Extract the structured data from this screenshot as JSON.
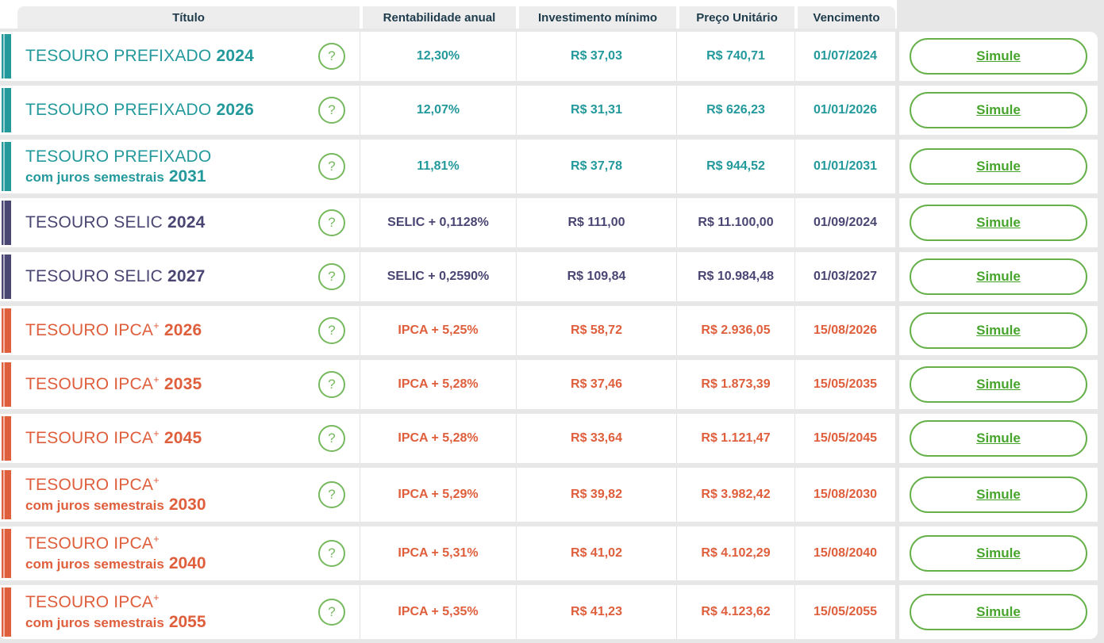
{
  "table": {
    "columns": [
      "Título",
      "Rentabilidade anual",
      "Investimento mínimo",
      "Preço Unitário",
      "Vencimento"
    ],
    "help_icon_glyph": "?",
    "simulate_label": "Simule",
    "rows": [
      {
        "theme": "teal",
        "line1": "TESOURO PREFIXADO",
        "sup": "",
        "year1": "2024",
        "line2": "",
        "year2": "",
        "rate": "12,30%",
        "min": "R$ 37,03",
        "price": "R$ 740,71",
        "due": "01/07/2024",
        "simulate": "Simule"
      },
      {
        "theme": "teal",
        "line1": "TESOURO PREFIXADO",
        "sup": "",
        "year1": "2026",
        "line2": "",
        "year2": "",
        "rate": "12,07%",
        "min": "R$ 31,31",
        "price": "R$ 626,23",
        "due": "01/01/2026",
        "simulate": "Simule"
      },
      {
        "theme": "teal",
        "line1": "TESOURO PREFIXADO",
        "sup": "",
        "year1": "",
        "line2": "com juros semestrais",
        "year2": "2031",
        "rate": "11,81%",
        "min": "R$ 37,78",
        "price": "R$ 944,52",
        "due": "01/01/2031",
        "simulate": "Simule"
      },
      {
        "theme": "purple",
        "line1": "TESOURO SELIC",
        "sup": "",
        "year1": "2024",
        "line2": "",
        "year2": "",
        "rate": "SELIC + 0,1128%",
        "min": "R$ 111,00",
        "price": "R$ 11.100,00",
        "due": "01/09/2024",
        "simulate": "Simule"
      },
      {
        "theme": "purple",
        "line1": "TESOURO SELIC",
        "sup": "",
        "year1": "2027",
        "line2": "",
        "year2": "",
        "rate": "SELIC + 0,2590%",
        "min": "R$ 109,84",
        "price": "R$ 10.984,48",
        "due": "01/03/2027",
        "simulate": "Simule"
      },
      {
        "theme": "orange",
        "line1": "TESOURO IPCA",
        "sup": "+",
        "year1": "2026",
        "line2": "",
        "year2": "",
        "rate": "IPCA + 5,25%",
        "min": "R$ 58,72",
        "price": "R$ 2.936,05",
        "due": "15/08/2026",
        "simulate": "Simule"
      },
      {
        "theme": "orange",
        "line1": "TESOURO IPCA",
        "sup": "+",
        "year1": "2035",
        "line2": "",
        "year2": "",
        "rate": "IPCA + 5,28%",
        "min": "R$ 37,46",
        "price": "R$ 1.873,39",
        "due": "15/05/2035",
        "simulate": "Simule"
      },
      {
        "theme": "orange",
        "line1": "TESOURO IPCA",
        "sup": "+",
        "year1": "2045",
        "line2": "",
        "year2": "",
        "rate": "IPCA + 5,28%",
        "min": "R$ 33,64",
        "price": "R$ 1.121,47",
        "due": "15/05/2045",
        "simulate": "Simule"
      },
      {
        "theme": "orange",
        "line1": "TESOURO IPCA",
        "sup": "+",
        "year1": "",
        "line2": "com juros semestrais",
        "year2": "2030",
        "rate": "IPCA + 5,29%",
        "min": "R$ 39,82",
        "price": "R$ 3.982,42",
        "due": "15/08/2030",
        "simulate": "Simule"
      },
      {
        "theme": "orange",
        "line1": "TESOURO IPCA",
        "sup": "+",
        "year1": "",
        "line2": "com juros semestrais",
        "year2": "2040",
        "rate": "IPCA + 5,31%",
        "min": "R$ 41,02",
        "price": "R$ 4.102,29",
        "due": "15/08/2040",
        "simulate": "Simule"
      },
      {
        "theme": "orange",
        "line1": "TESOURO IPCA",
        "sup": "+",
        "year1": "",
        "line2": "com juros semestrais",
        "year2": "2055",
        "rate": "IPCA + 5,35%",
        "min": "R$ 41,23",
        "price": "R$ 4.123,62",
        "due": "15/05/2055",
        "simulate": "Simule"
      }
    ]
  },
  "colors": {
    "teal": "#23999c",
    "purple": "#4a4673",
    "orange": "#df5e3c",
    "help_green": "#76b95e",
    "button_border_green": "#66b04a",
    "button_text_green": "#47a42c",
    "header_text": "#1e3b4c",
    "header_bg": "#ededed",
    "page_bg": "#e7e7e7"
  }
}
